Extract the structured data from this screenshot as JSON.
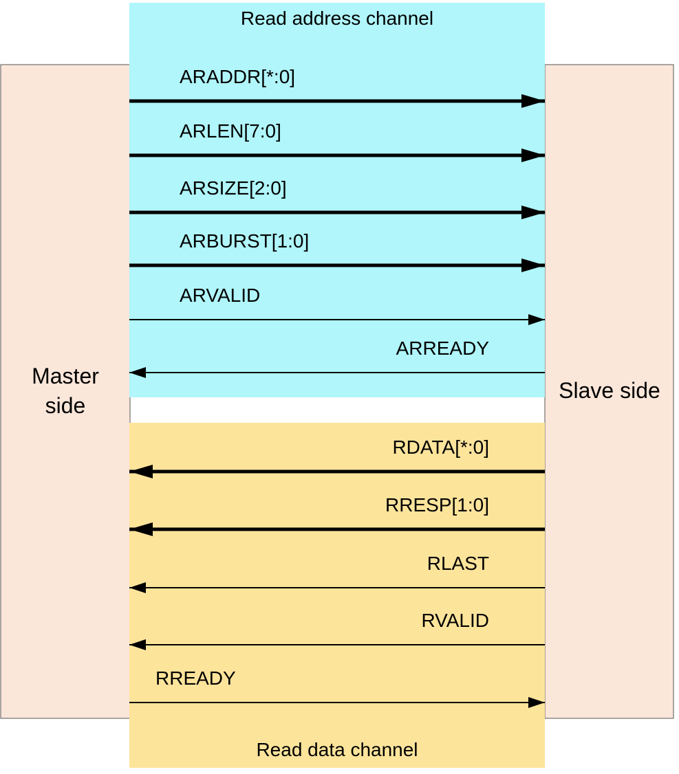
{
  "master": {
    "line1": "Master",
    "line2": "side"
  },
  "slave": {
    "label": "Slave side"
  },
  "read_address_channel": {
    "title": "Read address channel",
    "signals": [
      {
        "label": "ARADDR[*:0]",
        "direction": "to-slave",
        "bus": true
      },
      {
        "label": "ARLEN[7:0]",
        "direction": "to-slave",
        "bus": true
      },
      {
        "label": "ARSIZE[2:0]",
        "direction": "to-slave",
        "bus": true
      },
      {
        "label": "ARBURST[1:0]",
        "direction": "to-slave",
        "bus": true
      },
      {
        "label": "ARVALID",
        "direction": "to-slave",
        "bus": false
      },
      {
        "label": "ARREADY",
        "direction": "to-master",
        "bus": false
      }
    ]
  },
  "read_data_channel": {
    "title": "Read data channel",
    "signals": [
      {
        "label": "RDATA[*:0]",
        "direction": "to-master",
        "bus": true
      },
      {
        "label": "RRESP[1:0]",
        "direction": "to-master",
        "bus": true
      },
      {
        "label": "RLAST",
        "direction": "to-master",
        "bus": false
      },
      {
        "label": "RVALID",
        "direction": "to-master",
        "bus": false
      },
      {
        "label": "RREADY",
        "direction": "to-slave",
        "bus": false
      }
    ]
  },
  "colors": {
    "address_channel_fill": "#b0f6fa",
    "data_channel_fill": "#fde49b",
    "side_fill": "#fbe6da",
    "side_stroke": "#555555",
    "arrow": "#000000"
  }
}
